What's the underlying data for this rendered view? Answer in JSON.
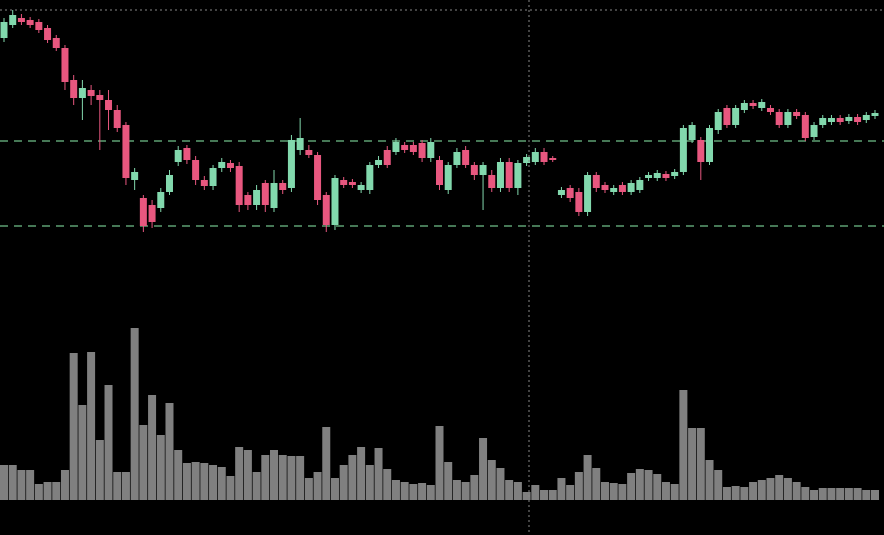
{
  "chart_data": [
    {
      "type": "candlestick",
      "open": [
        202,
        215,
        222,
        220,
        218,
        212,
        202,
        192,
        160,
        142,
        150,
        145,
        140,
        130,
        115,
        60,
        42,
        35,
        32,
        48,
        78,
        92,
        80,
        60,
        54,
        72,
        77,
        74,
        45,
        35,
        57,
        32,
        57,
        52,
        90,
        90,
        85,
        45,
        15,
        60,
        58,
        50,
        50,
        75,
        90,
        88,
        95,
        95,
        97,
        82,
        80,
        50,
        75,
        90,
        75,
        65,
        65,
        52,
        78,
        52,
        77,
        78,
        88,
        82,
        45,
        52,
        48,
        28,
        65,
        55,
        48,
        55,
        48,
        50,
        62,
        62,
        66,
        64,
        68,
        100,
        100,
        78,
        110,
        132,
        115,
        130,
        137,
        132,
        132,
        128,
        115,
        128,
        125,
        103,
        115,
        118,
        122,
        119,
        123,
        120,
        124
      ],
      "high": [
        222,
        230,
        226,
        223,
        221,
        215,
        205,
        195,
        165,
        160,
        155,
        150,
        150,
        135,
        118,
        72,
        45,
        40,
        52,
        70,
        94,
        95,
        84,
        64,
        75,
        82,
        80,
        78,
        48,
        55,
        60,
        70,
        60,
        105,
        122,
        95,
        88,
        48,
        65,
        63,
        61,
        58,
        78,
        84,
        94,
        102,
        98,
        98,
        100,
        102,
        84,
        78,
        92,
        94,
        78,
        78,
        70,
        82,
        82,
        80,
        86,
        92,
        92,
        84,
        53,
        55,
        52,
        68,
        68,
        58,
        55,
        58,
        60,
        63,
        68,
        70,
        69,
        71,
        115,
        118,
        103,
        115,
        131,
        135,
        135,
        140,
        140,
        141,
        135,
        131,
        131,
        131,
        128,
        118,
        125,
        125,
        125,
        126,
        126,
        128,
        130
      ],
      "low": [
        198,
        212,
        215,
        212,
        207,
        197,
        189,
        150,
        135,
        120,
        135,
        90,
        110,
        108,
        55,
        50,
        8,
        12,
        28,
        45,
        74,
        76,
        55,
        50,
        50,
        68,
        68,
        28,
        30,
        30,
        28,
        28,
        46,
        48,
        85,
        82,
        35,
        8,
        10,
        52,
        52,
        47,
        46,
        72,
        72,
        85,
        87,
        85,
        78,
        78,
        50,
        46,
        72,
        72,
        60,
        30,
        48,
        48,
        48,
        45,
        74,
        75,
        75,
        78,
        42,
        38,
        24,
        24,
        48,
        47,
        45,
        45,
        45,
        47,
        59,
        59,
        59,
        61,
        65,
        97,
        60,
        75,
        106,
        112,
        112,
        127,
        131,
        129,
        125,
        112,
        112,
        121,
        99,
        100,
        112,
        115,
        115,
        116,
        115,
        117,
        121
      ],
      "close": [
        218,
        225,
        218,
        215,
        210,
        200,
        192,
        158,
        142,
        152,
        144,
        140,
        130,
        112,
        62,
        68,
        14,
        18,
        48,
        65,
        90,
        80,
        60,
        54,
        72,
        78,
        72,
        35,
        35,
        50,
        35,
        57,
        50,
        100,
        102,
        85,
        40,
        15,
        62,
        55,
        55,
        55,
        75,
        80,
        75,
        98,
        90,
        88,
        82,
        98,
        55,
        75,
        88,
        75,
        65,
        75,
        52,
        78,
        52,
        77,
        83,
        88,
        78,
        80,
        50,
        42,
        28,
        65,
        52,
        50,
        52,
        48,
        57,
        60,
        65,
        67,
        62,
        68,
        112,
        115,
        78,
        112,
        128,
        115,
        132,
        137,
        134,
        138,
        128,
        115,
        128,
        124,
        102,
        115,
        122,
        122,
        118,
        123,
        118,
        125,
        127
      ],
      "up_color": "#82d8ad",
      "down_color": "#e8577f",
      "ylim": [
        0,
        240
      ],
      "hlines": [
        99,
        14
      ]
    },
    {
      "type": "bar",
      "values": [
        35,
        35,
        30,
        30,
        16,
        18,
        18,
        30,
        147,
        95,
        148,
        60,
        115,
        28,
        28,
        172,
        75,
        105,
        65,
        97,
        50,
        37,
        38,
        37,
        35,
        33,
        24,
        53,
        50,
        28,
        45,
        50,
        45,
        44,
        44,
        22,
        28,
        73,
        22,
        35,
        45,
        53,
        35,
        52,
        31,
        20,
        18,
        16,
        17,
        15,
        74,
        38,
        20,
        18,
        25,
        62,
        40,
        32,
        20,
        18,
        8,
        15,
        10,
        10,
        22,
        15,
        28,
        45,
        32,
        18,
        17,
        16,
        27,
        31,
        30,
        26,
        18,
        16,
        110,
        72,
        72,
        40,
        30,
        13,
        14,
        13,
        18,
        20,
        22,
        25,
        22,
        18,
        13,
        10,
        12,
        12,
        12,
        12,
        12,
        10,
        10
      ],
      "color": "#808080",
      "ylim": [
        0,
        200
      ]
    }
  ]
}
